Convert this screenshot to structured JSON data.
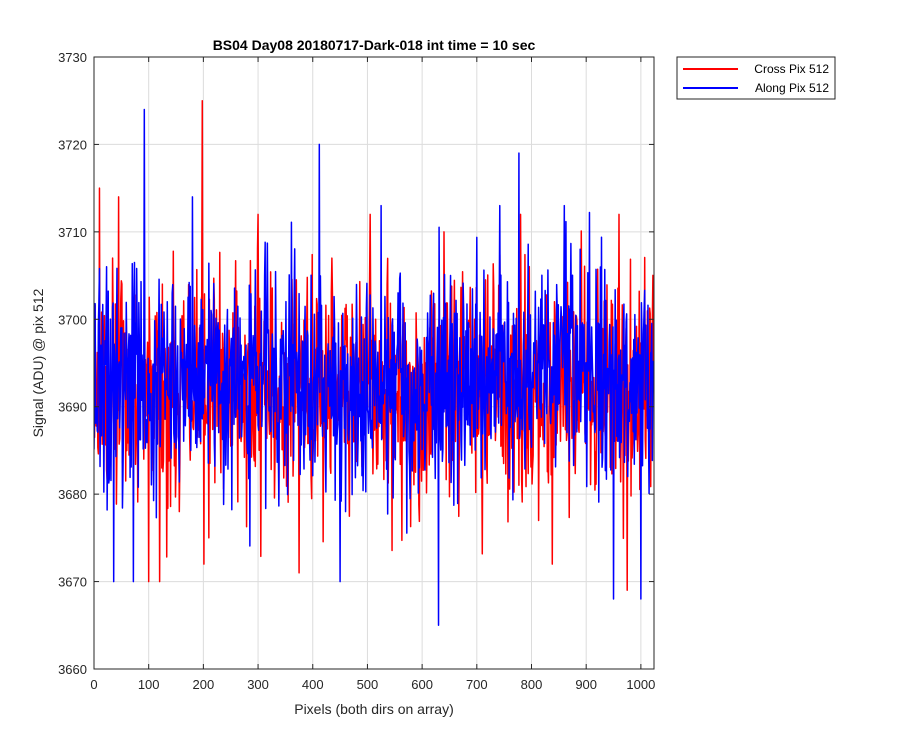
{
  "chart_data": {
    "type": "line",
    "title": "BS04 Day08 20180717-Dark-018 int time = 10 sec",
    "xlabel": "Pixels (both dirs on array)",
    "ylabel": "Signal (ADU) @ pix 512",
    "xlim": [
      0,
      1024
    ],
    "ylim": [
      3660,
      3730
    ],
    "xticks": [
      0,
      100,
      200,
      300,
      400,
      500,
      600,
      700,
      800,
      900,
      1000
    ],
    "yticks": [
      3660,
      3670,
      3680,
      3690,
      3700,
      3710,
      3720,
      3730
    ],
    "grid": true,
    "legend_position": "outside-top-right",
    "series": [
      {
        "name": "Cross Pix 512",
        "color": "#ff0000",
        "n_points": 1024,
        "mean": 3692,
        "std": 6.5,
        "peaks": [
          [
            10,
            3715
          ],
          [
            45,
            3714
          ],
          [
            100,
            3670
          ],
          [
            120,
            3670
          ],
          [
            198,
            3725
          ],
          [
            210,
            3675
          ],
          [
            300,
            3712
          ],
          [
            375,
            3671
          ],
          [
            505,
            3712
          ],
          [
            640,
            3710
          ],
          [
            780,
            3712
          ],
          [
            960,
            3712
          ],
          [
            975,
            3669
          ]
        ]
      },
      {
        "name": "Along Pix 512",
        "color": "#0000ff",
        "n_points": 1024,
        "mean": 3693,
        "std": 6.5,
        "peaks": [
          [
            36,
            3670
          ],
          [
            72,
            3670
          ],
          [
            92,
            3724
          ],
          [
            180,
            3714
          ],
          [
            412,
            3720
          ],
          [
            450,
            3670
          ],
          [
            525,
            3713
          ],
          [
            630,
            3665
          ],
          [
            777,
            3719
          ],
          [
            860,
            3713
          ],
          [
            950,
            3668
          ],
          [
            1000,
            3668
          ]
        ]
      }
    ]
  }
}
